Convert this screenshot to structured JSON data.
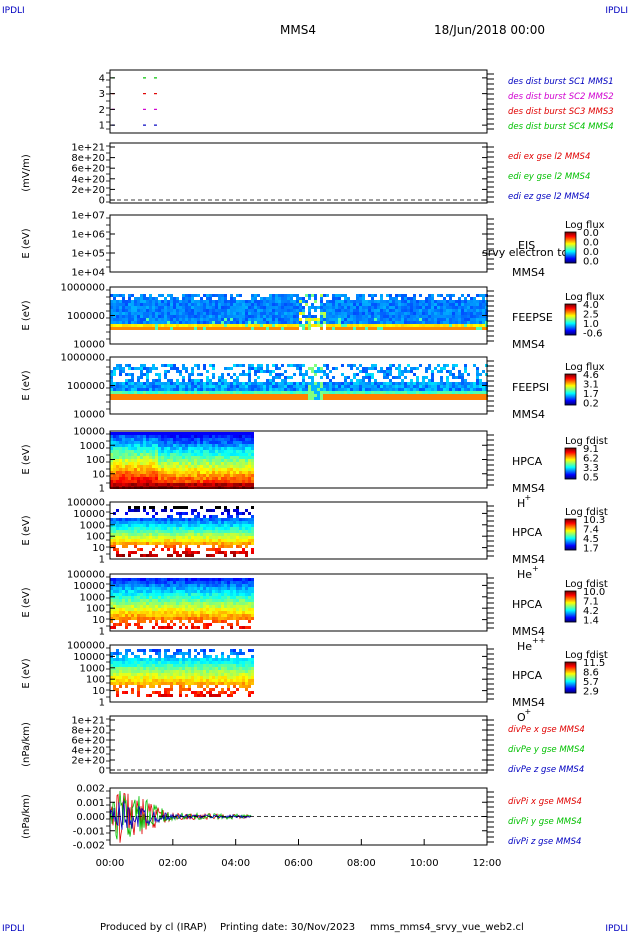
{
  "header": {
    "corner_label": "IPDLI",
    "spacecraft": "MMS4",
    "date": "18/Jun/2018 00:00"
  },
  "footer": {
    "produced_by": "Produced by cl (IRAP)",
    "printing_date": "Printing date: 30/Nov/2023",
    "script_name": "mms_mms4_srvy_vue_web2.cl"
  },
  "colors": {
    "red": "#e00000",
    "green": "#00c000",
    "blue": "#0000c0",
    "magenta": "#d000d0",
    "frame": "#000000"
  },
  "time_axis": {
    "ticks": [
      "00:00",
      "02:00",
      "04:00",
      "06:00",
      "08:00",
      "10:00",
      "12:00"
    ],
    "range_hours": [
      0,
      12
    ]
  },
  "chart_data": [
    {
      "id": "burst",
      "type": "scatter",
      "y_ticks": [
        "4",
        "3",
        "2",
        "1"
      ],
      "ylim": [
        0.5,
        4.5
      ],
      "legend": [
        {
          "text": "des dist burst SC1 MMS1",
          "color": "#0000c0"
        },
        {
          "text": "des dist burst SC2 MMS2",
          "color": "#d000d0"
        },
        {
          "text": "des dist burst SC3 MMS3",
          "color": "#e00000"
        },
        {
          "text": "des dist burst SC4 MMS4",
          "color": "#00c000"
        }
      ],
      "series": [
        {
          "name": "MMS4",
          "y": 4,
          "color": "#00c000",
          "x_hours": [
            0.05,
            1.05,
            1.4
          ]
        },
        {
          "name": "MMS3",
          "y": 3,
          "color": "#e00000",
          "x_hours": [
            0.05,
            1.05,
            1.4
          ]
        },
        {
          "name": "MMS2",
          "y": 2,
          "color": "#d000d0",
          "x_hours": [
            0.05,
            1.05,
            1.4
          ]
        },
        {
          "name": "MMS1",
          "y": 1,
          "color": "#0000c0",
          "x_hours": [
            0.05,
            1.05,
            1.4
          ]
        }
      ]
    },
    {
      "id": "edi",
      "type": "line",
      "ylabel": "(mV/m)",
      "y_ticks": [
        "1e+21",
        "8e+20",
        "6e+20",
        "4e+20",
        "2e+20",
        "0"
      ],
      "ylim": [
        0,
        1e+21
      ],
      "legend": [
        {
          "text": "edi ex gse l2 MMS4",
          "color": "#e00000"
        },
        {
          "text": "edi ey gse l2 MMS4",
          "color": "#00c000"
        },
        {
          "text": "edi ez gse l2 MMS4",
          "color": "#0000c0"
        }
      ],
      "zero_line": true
    },
    {
      "id": "eis",
      "type": "heatmap",
      "ylabel": "E (eV)",
      "y_ticks": [
        "1e+07",
        "1e+06",
        "1e+05",
        "1e+04"
      ],
      "instrument": [
        "EIS",
        "MMS4"
      ],
      "overlay_text": "srvy electron to",
      "colorbar": {
        "title": "Log flux",
        "labels": [
          "0.0",
          "0.0",
          "0.0",
          "0.0"
        ]
      }
    },
    {
      "id": "feepse",
      "type": "heatmap",
      "ylabel": "E (eV)",
      "y_ticks": [
        "1000000",
        "100000",
        "10000"
      ],
      "instrument": [
        "FEEPSE",
        "MMS4"
      ],
      "colorbar": {
        "title": "Log flux",
        "labels": [
          "4.0",
          "2.5",
          "1.0",
          "-0.6"
        ]
      },
      "x_coverage_hours": [
        0,
        12
      ]
    },
    {
      "id": "feepsi",
      "type": "heatmap",
      "ylabel": "E (eV)",
      "y_ticks": [
        "1000000",
        "100000",
        "10000"
      ],
      "instrument": [
        "FEEPSI",
        "MMS4"
      ],
      "colorbar": {
        "title": "Log flux",
        "labels": [
          "4.6",
          "3.1",
          "1.7",
          "0.2"
        ]
      },
      "x_coverage_hours": [
        0,
        12
      ]
    },
    {
      "id": "hpca_h",
      "type": "heatmap",
      "ylabel": "E (eV)",
      "y_ticks": [
        "10000",
        "1000",
        "100",
        "10",
        "1"
      ],
      "instrument": [
        "HPCA",
        "MMS4"
      ],
      "species": "H",
      "species_sup": "+",
      "colorbar": {
        "title": "Log fdist",
        "labels": [
          "9.1",
          "6.2",
          "3.3",
          "0.5"
        ]
      },
      "x_coverage_hours": [
        0,
        4.5
      ]
    },
    {
      "id": "hpca_he",
      "type": "heatmap",
      "ylabel": "E (eV)",
      "y_ticks": [
        "100000",
        "10000",
        "1000",
        "100",
        "10",
        "1"
      ],
      "instrument": [
        "HPCA",
        "MMS4"
      ],
      "species": "He",
      "species_sup": "+",
      "colorbar": {
        "title": "Log fdist",
        "labels": [
          "10.3",
          "7.4",
          "4.5",
          "1.7"
        ]
      },
      "x_coverage_hours": [
        0,
        4.5
      ]
    },
    {
      "id": "hpca_hepp",
      "type": "heatmap",
      "ylabel": "E (eV)",
      "y_ticks": [
        "100000",
        "10000",
        "1000",
        "100",
        "10",
        "1"
      ],
      "instrument": [
        "HPCA",
        "MMS4"
      ],
      "species": "He",
      "species_sup": "++",
      "colorbar": {
        "title": "Log fdist",
        "labels": [
          "10.0",
          "7.1",
          "4.2",
          "1.4"
        ]
      },
      "x_coverage_hours": [
        0,
        4.5
      ]
    },
    {
      "id": "hpca_o",
      "type": "heatmap",
      "ylabel": "E (eV)",
      "y_ticks": [
        "100000",
        "10000",
        "1000",
        "100",
        "10",
        "1"
      ],
      "instrument": [
        "HPCA",
        "MMS4"
      ],
      "species": "O",
      "species_sup": "+",
      "colorbar": {
        "title": "Log fdist",
        "labels": [
          "11.5",
          "8.6",
          "5.7",
          "2.9"
        ]
      },
      "x_coverage_hours": [
        0,
        4.5
      ]
    },
    {
      "id": "divpe",
      "type": "line",
      "ylabel": "(nPa/km)",
      "y_ticks": [
        "1e+21",
        "8e+20",
        "6e+20",
        "4e+20",
        "2e+20",
        "0"
      ],
      "ylim": [
        0,
        1e+21
      ],
      "legend": [
        {
          "text": "divPe x gse MMS4",
          "color": "#e00000"
        },
        {
          "text": "divPe y gse MMS4",
          "color": "#00c000"
        },
        {
          "text": "divPe z gse MMS4",
          "color": "#0000c0"
        }
      ],
      "zero_line": true
    },
    {
      "id": "divpi",
      "type": "line",
      "ylabel": "(nPa/km)",
      "y_ticks": [
        "0.002",
        "0.001",
        "0.000",
        "-0.001",
        "-0.002"
      ],
      "ylim": [
        -0.0025,
        0.0025
      ],
      "legend": [
        {
          "text": "divPi x gse MMS4",
          "color": "#e00000"
        },
        {
          "text": "divPi y gse MMS4",
          "color": "#00c000"
        },
        {
          "text": "divPi z gse MMS4",
          "color": "#0000c0"
        }
      ],
      "zero_line": true,
      "x_coverage_hours": [
        0,
        4.5
      ],
      "amplitude_profile": [
        {
          "t": 0.0,
          "amp": 0.0008
        },
        {
          "t": 0.3,
          "amp": 0.0025
        },
        {
          "t": 1.0,
          "amp": 0.0018
        },
        {
          "t": 1.5,
          "amp": 0.0009
        },
        {
          "t": 2.0,
          "amp": 0.0003
        },
        {
          "t": 4.5,
          "amp": 0.0002
        }
      ]
    }
  ]
}
